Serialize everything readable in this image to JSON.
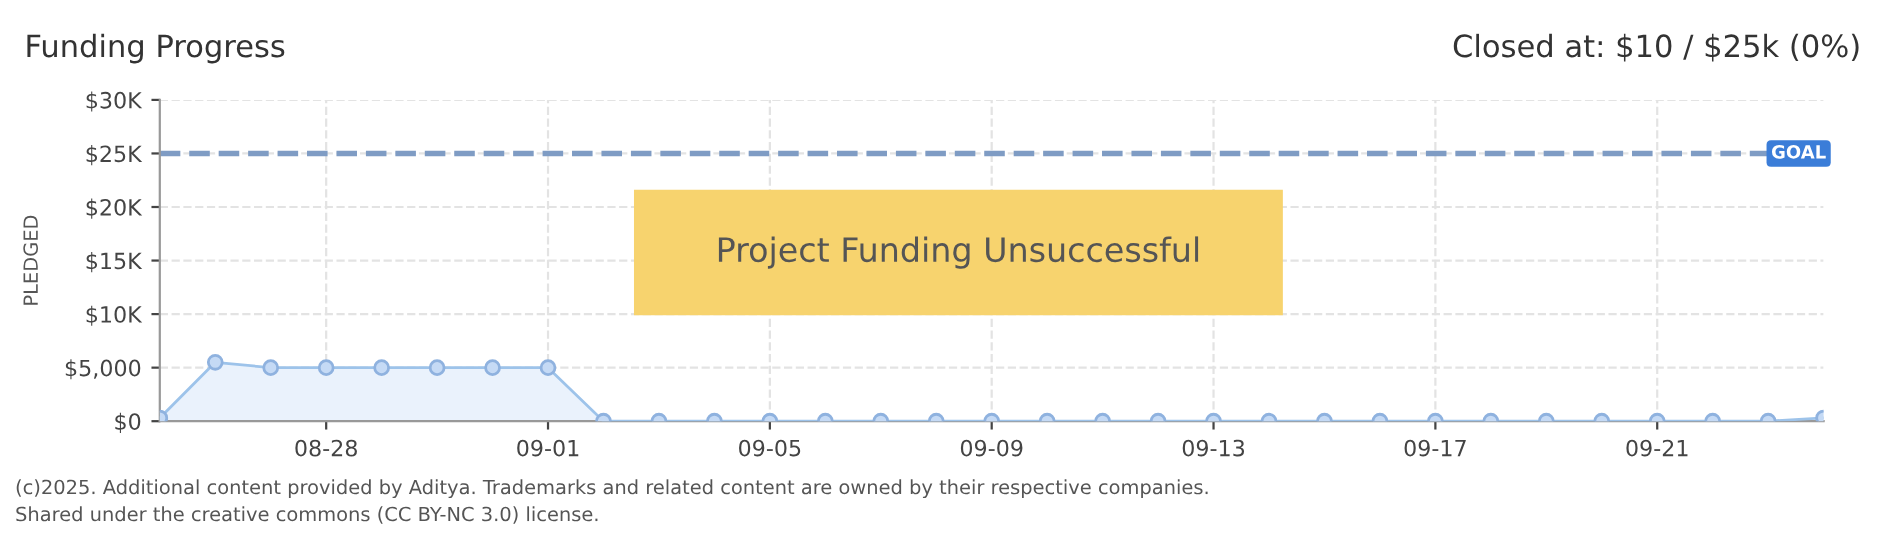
{
  "chart_data": {
    "type": "area",
    "title": "Funding Progress",
    "subtitle": "Closed at: $10 / $25k (0%)",
    "ylabel": "PLEDGED",
    "x": [
      "2025-08-25",
      "2025-08-26",
      "2025-08-27",
      "2025-08-28",
      "2025-08-29",
      "2025-08-30",
      "2025-08-31",
      "2025-09-01",
      "2025-09-02",
      "2025-09-03",
      "2025-09-04",
      "2025-09-05",
      "2025-09-06",
      "2025-09-07",
      "2025-09-08",
      "2025-09-09",
      "2025-09-10",
      "2025-09-11",
      "2025-09-12",
      "2025-09-13",
      "2025-09-14",
      "2025-09-15",
      "2025-09-16",
      "2025-09-17",
      "2025-09-18",
      "2025-09-19",
      "2025-09-20",
      "2025-09-21",
      "2025-09-22",
      "2025-09-23",
      "2025-09-24"
    ],
    "series": [
      {
        "color": "#9dc3ea",
        "values": [
          300,
          5500,
          5000,
          5000,
          5000,
          5000,
          5000,
          5000,
          0,
          0,
          0,
          0,
          0,
          0,
          0,
          0,
          0,
          0,
          0,
          0,
          0,
          0,
          0,
          0,
          0,
          0,
          0,
          0,
          0,
          0,
          300
        ]
      }
    ],
    "marker": "circle",
    "grid": true,
    "ylim": [
      0,
      30000
    ],
    "yticks": [
      {
        "value": 0,
        "label": "$0"
      },
      {
        "value": 5000,
        "label": "$5,000"
      },
      {
        "value": 10000,
        "label": "$10K"
      },
      {
        "value": 15000,
        "label": "$15K"
      },
      {
        "value": 20000,
        "label": "$20K"
      },
      {
        "value": 25000,
        "label": "$25K"
      },
      {
        "value": 30000,
        "label": "$30K"
      }
    ],
    "xlim": [
      "2025-08-25",
      "2025-09-24"
    ],
    "xticks": [
      {
        "value": "2025-08-28",
        "label": "08-28"
      },
      {
        "value": "2025-09-01",
        "label": "09-01"
      },
      {
        "value": "2025-09-05",
        "label": "09-05"
      },
      {
        "value": "2025-09-09",
        "label": "09-09"
      },
      {
        "value": "2025-09-13",
        "label": "09-13"
      },
      {
        "value": "2025-09-17",
        "label": "09-17"
      },
      {
        "value": "2025-09-21",
        "label": "09-21"
      }
    ],
    "ref_lines": [
      {
        "axis": "y",
        "value": 25000,
        "label": "GOAL",
        "color": "#7f9cc4",
        "line_style": "dashed"
      }
    ],
    "annotations": [
      "Project Funding Unsuccessful",
      "(c)2025. Additional content provided by Aditya. Trademarks and related content are owned by their respective companies.",
      "Shared under the creative commons (CC BY-NC 3.0) license."
    ]
  }
}
